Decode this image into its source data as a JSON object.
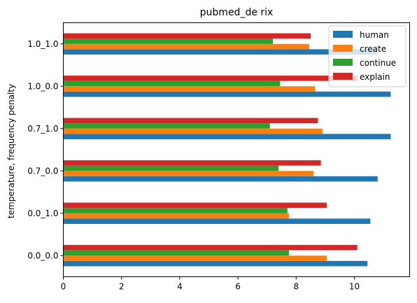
{
  "chart_data": {
    "type": "bar",
    "orientation": "horizontal",
    "title": "pubmed_de rix",
    "xlabel": "",
    "ylabel": "temperature, frequency penalty",
    "xlim": [
      0,
      11.9
    ],
    "xticks": [
      0,
      2,
      4,
      6,
      8,
      10
    ],
    "categories": [
      "0.0_0.0",
      "0.0_1.0",
      "0.7_0.0",
      "0.7_1.0",
      "1.0_0.0",
      "1.0_1.0"
    ],
    "series": [
      {
        "name": "human",
        "color": "#1f77b4",
        "values": [
          10.45,
          10.55,
          10.8,
          11.25,
          11.25,
          10.8
        ]
      },
      {
        "name": "create",
        "color": "#ff7f0e",
        "values": [
          9.05,
          7.75,
          8.6,
          8.9,
          8.65,
          8.45
        ]
      },
      {
        "name": "continue",
        "color": "#2ca02c",
        "values": [
          7.75,
          7.7,
          7.4,
          7.1,
          7.45,
          7.2
        ]
      },
      {
        "name": "explain",
        "color": "#d62728",
        "values": [
          10.1,
          9.05,
          8.85,
          8.75,
          10.1,
          8.5
        ]
      }
    ],
    "legend_position": "top-right",
    "grid": false
  }
}
